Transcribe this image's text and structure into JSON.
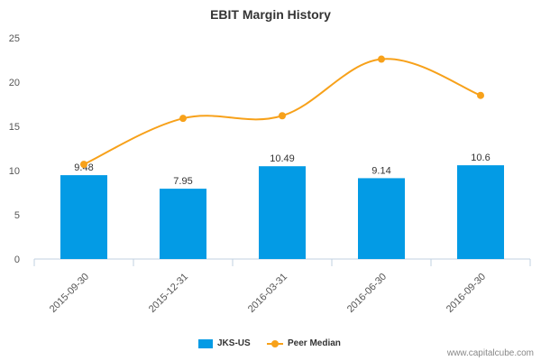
{
  "chart_data": {
    "type": "bar",
    "title": "EBIT Margin History",
    "categories": [
      "2015-09-30",
      "2015-12-31",
      "2016-03-31",
      "2016-06-30",
      "2016-09-30"
    ],
    "series": [
      {
        "name": "JKS-US",
        "type": "bar",
        "color": "#039be5",
        "values": [
          9.48,
          7.95,
          10.49,
          9.14,
          10.6
        ],
        "labels": [
          "9.48",
          "7.95",
          "10.49",
          "9.14",
          "10.6"
        ]
      },
      {
        "name": "Peer Median",
        "type": "line",
        "color": "#f7a11a",
        "values": [
          10.7,
          15.9,
          16.2,
          22.6,
          18.5
        ]
      }
    ],
    "ylim": [
      0,
      25
    ],
    "yticks": [
      "0",
      "5",
      "10",
      "15",
      "20",
      "25"
    ],
    "grid": false,
    "legend_position": "bottom-center"
  },
  "legend": {
    "bar_label": "JKS-US",
    "line_label": "Peer Median"
  },
  "watermark": "www.capitalcube.com"
}
